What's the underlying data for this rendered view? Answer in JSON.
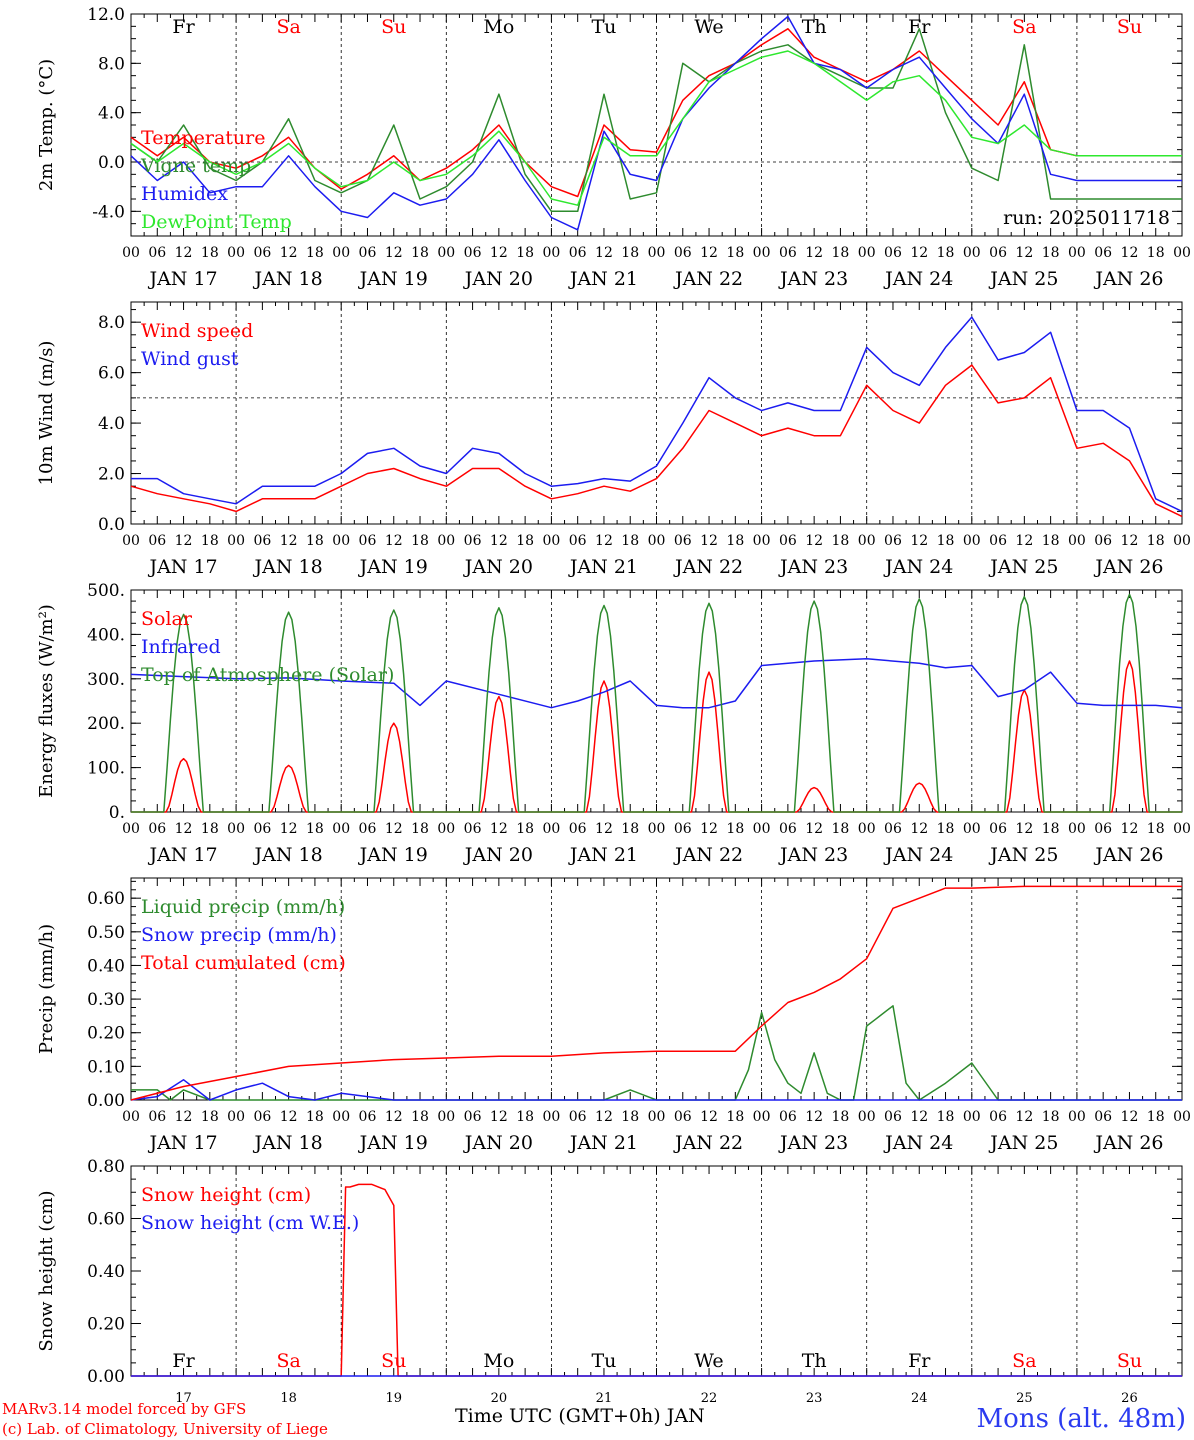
{
  "footer": {
    "credit_line1": "MARv3.14 model forced by GFS",
    "credit_line2": "(c) Lab. of Climatology, University of Liege",
    "x_axis_title": "Time UTC (GMT+0h) JAN",
    "station": "Mons (alt. 48m)"
  },
  "colors": {
    "red": "#ff0000",
    "green": "#2e8b2e",
    "blue": "#1c1cf0",
    "lightgreen": "#2ee82e",
    "weekend": "#ff0000",
    "weekday": "#000000"
  },
  "chart_data": [
    {
      "type": "line",
      "ylabel": "2m Temp. (°C)",
      "ylim": [
        -6,
        12
      ],
      "yticks": [
        "-4.0",
        "0.0",
        "4.0",
        "8.0",
        "12.0"
      ],
      "x_unit": "hours since JAN 17 00 UTC",
      "xlim": [
        0,
        240
      ],
      "grid": "vertical dotted day separators, horizontal dotted line at 0.0",
      "day_names": [
        "Fr",
        "Sa",
        "Su",
        "Mo",
        "Tu",
        "We",
        "Th",
        "Fr",
        "Sa",
        "Su"
      ],
      "date_labels": [
        "JAN 17",
        "JAN 18",
        "JAN 19",
        "JAN 20",
        "JAN 21",
        "JAN 22",
        "JAN 23",
        "JAN 24",
        "JAN 25",
        "JAN 26"
      ],
      "hour_tick_labels": [
        "00",
        "06",
        "12",
        "18"
      ],
      "annotation": "run: 2025011718",
      "series": [
        {
          "name": "Temperature",
          "color": "red",
          "x": [
            0,
            6,
            12,
            18,
            24,
            30,
            36,
            42,
            48,
            54,
            60,
            66,
            72,
            78,
            84,
            90,
            96,
            102,
            108,
            114,
            120,
            126,
            132,
            138,
            144,
            150,
            156,
            162,
            168,
            174,
            180,
            186,
            192,
            198,
            204,
            210,
            216,
            222,
            228,
            234,
            240
          ],
          "values": [
            2.0,
            0.5,
            2.0,
            0.0,
            -0.5,
            0.5,
            2.0,
            -0.5,
            -2.2,
            -1.0,
            0.5,
            -1.5,
            -0.5,
            1.0,
            3.0,
            0.0,
            -2.0,
            -2.8,
            3.0,
            1.0,
            0.8,
            5.0,
            7.0,
            8.0,
            9.5,
            10.8,
            8.5,
            7.5,
            6.5,
            7.5,
            9.0,
            7.0,
            5.0,
            3.0,
            6.5,
            1.0,
            0.5,
            0.5,
            0.5,
            0.5,
            0.5
          ]
        },
        {
          "name": "Vigne temp",
          "color": "green",
          "x": [
            0,
            6,
            12,
            18,
            24,
            30,
            36,
            42,
            48,
            54,
            60,
            66,
            72,
            78,
            84,
            90,
            96,
            102,
            108,
            114,
            120,
            126,
            132,
            138,
            144,
            150,
            156,
            162,
            168,
            174,
            180,
            186,
            192,
            198,
            204,
            210,
            216,
            222,
            228,
            234,
            240
          ],
          "values": [
            1.5,
            0.0,
            3.0,
            -0.5,
            -1.5,
            0.0,
            3.5,
            -1.5,
            -2.5,
            -1.5,
            3.0,
            -3.0,
            -2.0,
            0.0,
            5.5,
            -1.0,
            -4.0,
            -4.0,
            5.5,
            -3.0,
            -2.5,
            8.0,
            6.5,
            8.0,
            9.0,
            9.5,
            8.0,
            7.0,
            6.0,
            6.0,
            10.8,
            4.0,
            -0.5,
            -1.5,
            9.5,
            -3.0,
            -3.0,
            -3.0,
            -3.0,
            -3.0,
            -3.0
          ]
        },
        {
          "name": "Humidex",
          "color": "blue",
          "x": [
            0,
            6,
            12,
            18,
            24,
            30,
            36,
            42,
            48,
            54,
            60,
            66,
            72,
            78,
            84,
            90,
            96,
            102,
            108,
            114,
            120,
            126,
            132,
            138,
            144,
            150,
            156,
            162,
            168,
            174,
            180,
            186,
            192,
            198,
            204,
            210,
            216,
            222,
            228,
            234,
            240
          ],
          "values": [
            0.5,
            -1.5,
            0.0,
            -2.5,
            -2.0,
            -2.0,
            0.5,
            -2.0,
            -4.0,
            -4.5,
            -2.5,
            -3.5,
            -3.0,
            -1.0,
            1.8,
            -1.5,
            -4.5,
            -5.5,
            2.5,
            -1.0,
            -1.5,
            3.5,
            6.0,
            8.0,
            10.0,
            11.8,
            8.0,
            7.5,
            6.0,
            7.5,
            8.5,
            6.0,
            3.5,
            1.5,
            5.5,
            -1.0,
            -1.5,
            -1.5,
            -1.5,
            -1.5,
            -1.5
          ]
        },
        {
          "name": "DewPoint Temp",
          "color": "lightgreen",
          "x": [
            0,
            6,
            12,
            18,
            24,
            30,
            36,
            42,
            48,
            54,
            60,
            66,
            72,
            78,
            84,
            90,
            96,
            102,
            108,
            114,
            120,
            126,
            132,
            138,
            144,
            150,
            156,
            162,
            168,
            174,
            180,
            186,
            192,
            198,
            204,
            210,
            216,
            222,
            228,
            234,
            240
          ],
          "values": [
            1.5,
            0.0,
            1.5,
            0.0,
            -1.0,
            0.0,
            1.5,
            -0.5,
            -2.0,
            -1.5,
            0.0,
            -1.5,
            -1.0,
            0.5,
            2.5,
            0.0,
            -3.0,
            -3.5,
            2.0,
            0.5,
            0.5,
            3.5,
            6.5,
            7.5,
            8.5,
            9.0,
            8.0,
            6.5,
            5.0,
            6.5,
            7.0,
            5.0,
            2.0,
            1.5,
            3.0,
            1.0,
            0.5,
            0.5,
            0.5,
            0.5,
            0.5
          ]
        }
      ]
    },
    {
      "type": "line",
      "ylabel": "10m Wind (m/s)",
      "ylim": [
        0,
        8.8
      ],
      "yticks": [
        "0.0",
        "2.0",
        "4.0",
        "6.0",
        "8.0"
      ],
      "xlim": [
        0,
        240
      ],
      "grid": "vertical dotted day separators, horizontal dotted line at 5.0",
      "date_labels": [
        "JAN 17",
        "JAN 18",
        "JAN 19",
        "JAN 20",
        "JAN 21",
        "JAN 22",
        "JAN 23",
        "JAN 24",
        "JAN 25",
        "JAN 26"
      ],
      "hour_tick_labels": [
        "00",
        "06",
        "12",
        "18"
      ],
      "series": [
        {
          "name": "Wind speed",
          "color": "red",
          "x": [
            0,
            6,
            12,
            18,
            24,
            30,
            36,
            42,
            48,
            54,
            60,
            66,
            72,
            78,
            84,
            90,
            96,
            102,
            108,
            114,
            120,
            126,
            132,
            138,
            144,
            150,
            156,
            162,
            168,
            174,
            180,
            186,
            192,
            198,
            204,
            210,
            216,
            222,
            228,
            234,
            240
          ],
          "values": [
            1.5,
            1.2,
            1.0,
            0.8,
            0.5,
            1.0,
            1.0,
            1.0,
            1.5,
            2.0,
            2.2,
            1.8,
            1.5,
            2.2,
            2.2,
            1.5,
            1.0,
            1.2,
            1.5,
            1.3,
            1.8,
            3.0,
            4.5,
            4.0,
            3.5,
            3.8,
            3.5,
            3.5,
            5.5,
            4.5,
            4.0,
            5.5,
            6.3,
            4.8,
            5.0,
            5.8,
            3.0,
            3.2,
            2.5,
            0.8,
            0.3
          ]
        },
        {
          "name": "Wind gust",
          "color": "blue",
          "x": [
            0,
            6,
            12,
            18,
            24,
            30,
            36,
            42,
            48,
            54,
            60,
            66,
            72,
            78,
            84,
            90,
            96,
            102,
            108,
            114,
            120,
            126,
            132,
            138,
            144,
            150,
            156,
            162,
            168,
            174,
            180,
            186,
            192,
            198,
            204,
            210,
            216,
            222,
            228,
            234,
            240
          ],
          "values": [
            1.8,
            1.8,
            1.2,
            1.0,
            0.8,
            1.5,
            1.5,
            1.5,
            2.0,
            2.8,
            3.0,
            2.3,
            2.0,
            3.0,
            2.8,
            2.0,
            1.5,
            1.6,
            1.8,
            1.7,
            2.3,
            4.0,
            5.8,
            5.0,
            4.5,
            4.8,
            4.5,
            4.5,
            7.0,
            6.0,
            5.5,
            7.0,
            8.2,
            6.5,
            6.8,
            7.6,
            4.5,
            4.5,
            3.8,
            1.0,
            0.5
          ]
        }
      ]
    },
    {
      "type": "line",
      "ylabel": "Energy fluxes (W/m²)",
      "ylim": [
        0,
        500
      ],
      "yticks": [
        "0.",
        "100.",
        "200.",
        "300.",
        "400.",
        "500."
      ],
      "xlim": [
        0,
        240
      ],
      "grid": "vertical dotted day separators",
      "date_labels": [
        "JAN 17",
        "JAN 18",
        "JAN 19",
        "JAN 20",
        "JAN 21",
        "JAN 22",
        "JAN 23",
        "JAN 24",
        "JAN 25",
        "JAN 26"
      ],
      "hour_tick_labels": [
        "00",
        "06",
        "12",
        "18"
      ],
      "series": [
        {
          "name": "Solar",
          "color": "red",
          "daily_peak": [
            120,
            105,
            200,
            260,
            295,
            315,
            55,
            65,
            275,
            340
          ]
        },
        {
          "name": "Infrared",
          "color": "blue",
          "x": [
            0,
            12,
            24,
            36,
            48,
            60,
            66,
            72,
            84,
            96,
            102,
            108,
            114,
            120,
            126,
            132,
            138,
            144,
            156,
            168,
            180,
            186,
            192,
            198,
            204,
            210,
            216,
            222,
            228,
            234,
            240
          ],
          "values": [
            310,
            305,
            300,
            302,
            295,
            290,
            240,
            295,
            265,
            235,
            250,
            270,
            295,
            240,
            235,
            235,
            250,
            330,
            340,
            345,
            335,
            325,
            330,
            260,
            275,
            315,
            245,
            240,
            240,
            240,
            235
          ]
        },
        {
          "name": "Top of Atmosphere (Solar)",
          "color": "green",
          "daily_peak": [
            445,
            450,
            455,
            460,
            465,
            470,
            475,
            480,
            485,
            490
          ]
        }
      ]
    },
    {
      "type": "line",
      "ylabel": "Precip (mm/h)",
      "ylim": [
        0,
        0.66
      ],
      "yticks": [
        "0.00",
        "0.10",
        "0.20",
        "0.30",
        "0.40",
        "0.50",
        "0.60"
      ],
      "xlim": [
        0,
        240
      ],
      "grid": "vertical dotted day separators",
      "date_labels": [
        "JAN 17",
        "JAN 18",
        "JAN 19",
        "JAN 20",
        "JAN 21",
        "JAN 22",
        "JAN 23",
        "JAN 24",
        "JAN 25",
        "JAN 26"
      ],
      "hour_tick_labels": [
        "00",
        "06",
        "12",
        "18"
      ],
      "series": [
        {
          "name": "Liquid precip (mm/h)",
          "color": "green",
          "x": [
            0,
            6,
            9,
            12,
            18,
            24,
            36,
            48,
            60,
            72,
            84,
            96,
            108,
            114,
            120,
            132,
            138,
            141,
            144,
            147,
            150,
            153,
            156,
            159,
            162,
            165,
            168,
            170,
            174,
            177,
            180,
            186,
            192,
            198,
            204,
            210,
            216,
            222,
            228,
            234,
            240
          ],
          "values": [
            0.03,
            0.03,
            0.0,
            0.03,
            0.0,
            0.0,
            0.0,
            0.0,
            0.0,
            0.0,
            0.0,
            0.0,
            0.0,
            0.03,
            0.0,
            0.0,
            0.0,
            0.09,
            0.26,
            0.12,
            0.05,
            0.02,
            0.14,
            0.02,
            0.0,
            0.0,
            0.22,
            0.24,
            0.28,
            0.05,
            0.0,
            0.05,
            0.11,
            0.0,
            0.0,
            0.0,
            0.0,
            0.0,
            0.0,
            0.0,
            0.0
          ]
        },
        {
          "name": "Snow precip (mm/h)",
          "color": "blue",
          "x": [
            0,
            6,
            12,
            18,
            24,
            30,
            36,
            42,
            48,
            54,
            60,
            72,
            84,
            96,
            108,
            120,
            240
          ],
          "values": [
            0.0,
            0.01,
            0.06,
            0.0,
            0.03,
            0.05,
            0.01,
            0.0,
            0.02,
            0.01,
            0.0,
            0.0,
            0.0,
            0.0,
            0.0,
            0.0,
            0.0
          ]
        },
        {
          "name": "Total cumulated (cm)",
          "color": "red",
          "x": [
            0,
            12,
            24,
            36,
            48,
            60,
            72,
            84,
            96,
            108,
            120,
            138,
            144,
            150,
            156,
            162,
            168,
            174,
            180,
            186,
            192,
            204,
            216,
            228,
            240
          ],
          "values": [
            0.0,
            0.04,
            0.07,
            0.1,
            0.11,
            0.12,
            0.125,
            0.13,
            0.13,
            0.14,
            0.145,
            0.145,
            0.22,
            0.29,
            0.32,
            0.36,
            0.42,
            0.57,
            0.6,
            0.63,
            0.63,
            0.635,
            0.635,
            0.635,
            0.635
          ]
        }
      ]
    },
    {
      "type": "line",
      "ylabel": "Snow height (cm)",
      "ylim": [
        0,
        0.8
      ],
      "yticks": [
        "0.00",
        "0.20",
        "0.40",
        "0.60",
        "0.80"
      ],
      "xlim": [
        0,
        240
      ],
      "grid": "vertical dotted day separators",
      "day_names": [
        "Fr",
        "Sa",
        "Su",
        "Mo",
        "Tu",
        "We",
        "Th",
        "Fr",
        "Sa",
        "Su"
      ],
      "day_numbers": [
        "17",
        "18",
        "19",
        "20",
        "21",
        "22",
        "23",
        "24",
        "25",
        "26"
      ],
      "series": [
        {
          "name": "Snow height (cm)",
          "color": "red",
          "x": [
            0,
            48,
            49,
            50,
            52,
            55,
            58,
            60,
            61,
            62,
            240
          ],
          "values": [
            0.0,
            0.0,
            0.72,
            0.72,
            0.73,
            0.73,
            0.71,
            0.65,
            0.0,
            0.0,
            0.0
          ]
        },
        {
          "name": "Snow height (cm W.E.)",
          "color": "blue",
          "x": [
            0,
            240
          ],
          "values": [
            0.0,
            0.0
          ]
        }
      ]
    }
  ]
}
